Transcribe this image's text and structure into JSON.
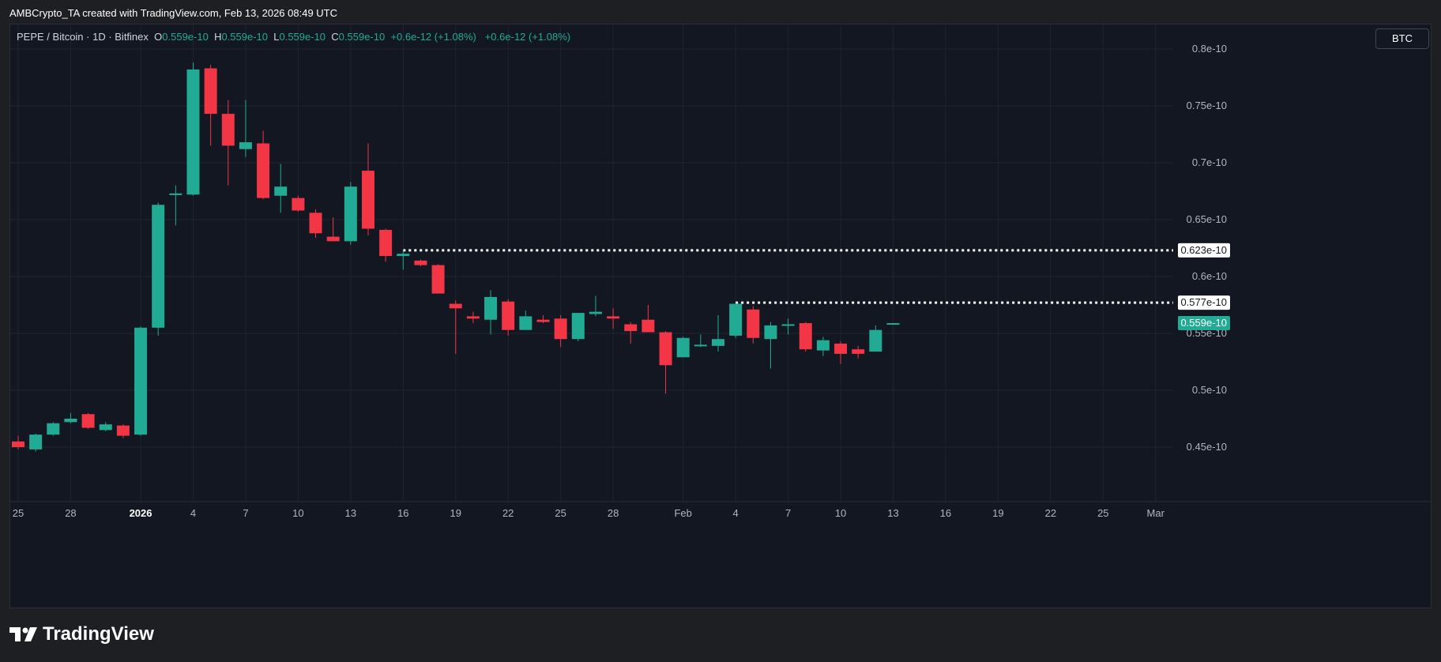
{
  "caption": "AMBCrypto_TA created with TradingView.com, Feb 13, 2026 08:49 UTC",
  "legend": {
    "symbol": "PEPE / Bitcoin · 1D · Bitfinex",
    "o_label": "O",
    "o": "0.559e-10",
    "h_label": "H",
    "h": "0.559e-10",
    "l_label": "L",
    "l": "0.559e-10",
    "c_label": "C",
    "c": "0.559e-10",
    "change": "+0.6e-12 (+1.08%)",
    "change2": "+0.6e-12 (+1.08%)"
  },
  "currency_badge": "BTC",
  "brand_name": "TradingView",
  "colors": {
    "up": "#22ab94",
    "down": "#f23645",
    "grid": "#1f2430",
    "bg": "#131722"
  },
  "chart_data": {
    "type": "candlestick",
    "ylim": [
      0.41,
      0.82
    ],
    "y_ticks": [
      {
        "v": 0.45,
        "label": "0.45e-10"
      },
      {
        "v": 0.5,
        "label": "0.5e-10"
      },
      {
        "v": 0.55,
        "label": "0.55e-10"
      },
      {
        "v": 0.6,
        "label": "0.6e-10"
      },
      {
        "v": 0.65,
        "label": "0.65e-10"
      },
      {
        "v": 0.7,
        "label": "0.7e-10"
      },
      {
        "v": 0.75,
        "label": "0.75e-10"
      },
      {
        "v": 0.8,
        "label": "0.8e-10"
      }
    ],
    "x_ticks": [
      {
        "i": 0,
        "label": "25"
      },
      {
        "i": 3,
        "label": "28"
      },
      {
        "i": 7,
        "label": "2026",
        "bold": true
      },
      {
        "i": 10,
        "label": "4"
      },
      {
        "i": 13,
        "label": "7"
      },
      {
        "i": 16,
        "label": "10"
      },
      {
        "i": 19,
        "label": "13"
      },
      {
        "i": 22,
        "label": "16"
      },
      {
        "i": 25,
        "label": "19"
      },
      {
        "i": 28,
        "label": "22"
      },
      {
        "i": 31,
        "label": "25"
      },
      {
        "i": 34,
        "label": "28"
      },
      {
        "i": 38,
        "label": "Feb"
      },
      {
        "i": 41,
        "label": "4"
      },
      {
        "i": 44,
        "label": "7"
      },
      {
        "i": 47,
        "label": "10"
      },
      {
        "i": 50,
        "label": "13"
      },
      {
        "i": 53,
        "label": "16"
      },
      {
        "i": 56,
        "label": "19"
      },
      {
        "i": 59,
        "label": "22"
      },
      {
        "i": 62,
        "label": "25"
      },
      {
        "i": 65,
        "label": "Mar"
      }
    ],
    "candles": [
      {
        "o": 0.455,
        "h": 0.46,
        "l": 0.448,
        "c": 0.45
      },
      {
        "o": 0.448,
        "h": 0.462,
        "l": 0.446,
        "c": 0.461
      },
      {
        "o": 0.461,
        "h": 0.472,
        "l": 0.46,
        "c": 0.471
      },
      {
        "o": 0.472,
        "h": 0.48,
        "l": 0.471,
        "c": 0.475
      },
      {
        "o": 0.479,
        "h": 0.48,
        "l": 0.466,
        "c": 0.467
      },
      {
        "o": 0.465,
        "h": 0.472,
        "l": 0.464,
        "c": 0.47
      },
      {
        "o": 0.469,
        "h": 0.47,
        "l": 0.458,
        "c": 0.46
      },
      {
        "o": 0.461,
        "h": 0.556,
        "l": 0.46,
        "c": 0.555
      },
      {
        "o": 0.555,
        "h": 0.665,
        "l": 0.548,
        "c": 0.663
      },
      {
        "o": 0.672,
        "h": 0.68,
        "l": 0.645,
        "c": 0.673
      },
      {
        "o": 0.672,
        "h": 0.788,
        "l": 0.671,
        "c": 0.782
      },
      {
        "o": 0.783,
        "h": 0.786,
        "l": 0.715,
        "c": 0.743
      },
      {
        "o": 0.743,
        "h": 0.755,
        "l": 0.68,
        "c": 0.715
      },
      {
        "o": 0.712,
        "h": 0.755,
        "l": 0.705,
        "c": 0.718
      },
      {
        "o": 0.717,
        "h": 0.728,
        "l": 0.668,
        "c": 0.669
      },
      {
        "o": 0.671,
        "h": 0.699,
        "l": 0.656,
        "c": 0.679
      },
      {
        "o": 0.669,
        "h": 0.671,
        "l": 0.657,
        "c": 0.658
      },
      {
        "o": 0.656,
        "h": 0.659,
        "l": 0.634,
        "c": 0.638
      },
      {
        "o": 0.635,
        "h": 0.652,
        "l": 0.631,
        "c": 0.631
      },
      {
        "o": 0.631,
        "h": 0.683,
        "l": 0.628,
        "c": 0.679
      },
      {
        "o": 0.693,
        "h": 0.717,
        "l": 0.636,
        "c": 0.642
      },
      {
        "o": 0.641,
        "h": 0.642,
        "l": 0.613,
        "c": 0.618
      },
      {
        "o": 0.618,
        "h": 0.623,
        "l": 0.606,
        "c": 0.62
      },
      {
        "o": 0.614,
        "h": 0.615,
        "l": 0.609,
        "c": 0.61
      },
      {
        "o": 0.61,
        "h": 0.611,
        "l": 0.585,
        "c": 0.585
      },
      {
        "o": 0.576,
        "h": 0.579,
        "l": 0.532,
        "c": 0.572
      },
      {
        "o": 0.565,
        "h": 0.569,
        "l": 0.559,
        "c": 0.563
      },
      {
        "o": 0.562,
        "h": 0.588,
        "l": 0.549,
        "c": 0.582
      },
      {
        "o": 0.578,
        "h": 0.58,
        "l": 0.548,
        "c": 0.553
      },
      {
        "o": 0.553,
        "h": 0.57,
        "l": 0.553,
        "c": 0.565
      },
      {
        "o": 0.562,
        "h": 0.566,
        "l": 0.559,
        "c": 0.56
      },
      {
        "o": 0.563,
        "h": 0.566,
        "l": 0.538,
        "c": 0.545
      },
      {
        "o": 0.545,
        "h": 0.568,
        "l": 0.543,
        "c": 0.568
      },
      {
        "o": 0.567,
        "h": 0.583,
        "l": 0.565,
        "c": 0.569
      },
      {
        "o": 0.565,
        "h": 0.572,
        "l": 0.554,
        "c": 0.563
      },
      {
        "o": 0.558,
        "h": 0.56,
        "l": 0.541,
        "c": 0.552
      },
      {
        "o": 0.562,
        "h": 0.575,
        "l": 0.551,
        "c": 0.551
      },
      {
        "o": 0.551,
        "h": 0.552,
        "l": 0.497,
        "c": 0.522
      },
      {
        "o": 0.529,
        "h": 0.547,
        "l": 0.529,
        "c": 0.546
      },
      {
        "o": 0.54,
        "h": 0.549,
        "l": 0.538,
        "c": 0.54
      },
      {
        "o": 0.539,
        "h": 0.566,
        "l": 0.534,
        "c": 0.545
      },
      {
        "o": 0.548,
        "h": 0.577,
        "l": 0.546,
        "c": 0.576
      },
      {
        "o": 0.571,
        "h": 0.574,
        "l": 0.541,
        "c": 0.546
      },
      {
        "o": 0.545,
        "h": 0.56,
        "l": 0.519,
        "c": 0.557
      },
      {
        "o": 0.557,
        "h": 0.563,
        "l": 0.549,
        "c": 0.558
      },
      {
        "o": 0.559,
        "h": 0.56,
        "l": 0.534,
        "c": 0.536
      },
      {
        "o": 0.535,
        "h": 0.547,
        "l": 0.53,
        "c": 0.544
      },
      {
        "o": 0.541,
        "h": 0.543,
        "l": 0.523,
        "c": 0.532
      },
      {
        "o": 0.536,
        "h": 0.539,
        "l": 0.528,
        "c": 0.532
      },
      {
        "o": 0.534,
        "h": 0.557,
        "l": 0.534,
        "c": 0.553
      },
      {
        "o": 0.559,
        "h": 0.559,
        "l": 0.559,
        "c": 0.559
      }
    ],
    "levels": [
      {
        "value": 0.623,
        "label": "0.623e-10",
        "from_index": 22
      },
      {
        "value": 0.577,
        "label": "0.577e-10",
        "from_index": 41
      }
    ],
    "last_price": {
      "value": 0.559,
      "label": "0.559e-10"
    }
  }
}
